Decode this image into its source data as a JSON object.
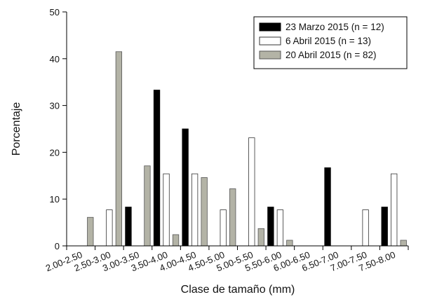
{
  "chart_data": {
    "type": "bar",
    "title": "",
    "xlabel": "Clase de tamaño (mm)",
    "ylabel": "Porcentaje",
    "ylim": [
      0,
      50
    ],
    "yticks": [
      0,
      10,
      20,
      30,
      40,
      50
    ],
    "grid": false,
    "legend_position": "top-right",
    "categories": [
      "2.00-2.50",
      "2.50-3.00",
      "3.00-3.50",
      "3.50-4.00",
      "4.00-4.50",
      "4.50-5.00",
      "5.00-5.50",
      "5.50-6.00",
      "6.00-6.50",
      "6.50-7.00",
      "7.00-7.50",
      "7.50-8.00"
    ],
    "series": [
      {
        "name": "23 Marzo 2015 (n = 12)",
        "fill": "#000000",
        "stroke": "#000000",
        "values": [
          0,
          0,
          8.3,
          33.3,
          25.0,
          0,
          0,
          8.3,
          0,
          16.7,
          0,
          8.3
        ]
      },
      {
        "name": "6 Abril 2015 (n = 13)",
        "fill": "#ffffff",
        "stroke": "#333333",
        "values": [
          0,
          7.7,
          0,
          15.4,
          15.4,
          7.7,
          23.1,
          7.7,
          0,
          0,
          7.7,
          15.4
        ]
      },
      {
        "name": "20 Abril 2015 (n = 82)",
        "fill": "#b3b3a6",
        "stroke": "#555555",
        "values": [
          6.1,
          41.5,
          17.1,
          2.4,
          14.6,
          12.2,
          3.7,
          1.2,
          0,
          0,
          0,
          1.2
        ]
      }
    ]
  }
}
